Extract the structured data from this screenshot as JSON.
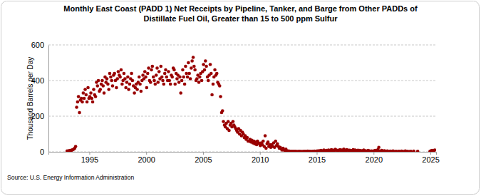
{
  "chart_data": {
    "type": "scatter",
    "title": [
      "Monthly East Coast (PADD 1) Net Receipts by Pipeline, Tanker, and Barge from Other PADDs of",
      "Distillate Fuel Oil, Greater than 15 to 500 ppm Sulfur"
    ],
    "y_label": "Thousand Barrels per Day",
    "source": "Source: U.S. Energy Information Administration",
    "color": "#990000",
    "marker": "circle",
    "grid": true,
    "xlim": [
      1991.4,
      2025.5
    ],
    "xticks": [
      1995,
      2000,
      2005,
      2010,
      2015,
      2020,
      2025
    ],
    "ylim": [
      0,
      600
    ],
    "yticks": [
      0,
      200,
      400,
      600
    ],
    "x": [
      1993.04,
      1993.13,
      1993.21,
      1993.29,
      1993.38,
      1993.46,
      1993.54,
      1993.63,
      1993.71,
      1993.79,
      1993.88,
      1993.96,
      1994.04,
      1994.13,
      1994.21,
      1994.29,
      1994.38,
      1994.46,
      1994.54,
      1994.63,
      1994.71,
      1994.79,
      1994.88,
      1994.96,
      1995.04,
      1995.13,
      1995.21,
      1995.29,
      1995.38,
      1995.46,
      1995.54,
      1995.63,
      1995.71,
      1995.79,
      1995.88,
      1995.96,
      1996.04,
      1996.13,
      1996.21,
      1996.29,
      1996.38,
      1996.46,
      1996.54,
      1996.63,
      1996.71,
      1996.79,
      1996.88,
      1996.96,
      1997.04,
      1997.13,
      1997.21,
      1997.29,
      1997.38,
      1997.46,
      1997.54,
      1997.63,
      1997.71,
      1997.79,
      1997.88,
      1997.96,
      1998.04,
      1998.13,
      1998.21,
      1998.29,
      1998.38,
      1998.46,
      1998.54,
      1998.63,
      1998.71,
      1998.79,
      1998.88,
      1998.96,
      1999.04,
      1999.13,
      1999.21,
      1999.29,
      1999.38,
      1999.46,
      1999.54,
      1999.63,
      1999.71,
      1999.79,
      1999.88,
      1999.96,
      2000.04,
      2000.13,
      2000.21,
      2000.29,
      2000.38,
      2000.46,
      2000.54,
      2000.63,
      2000.71,
      2000.79,
      2000.88,
      2000.96,
      2001.04,
      2001.13,
      2001.21,
      2001.29,
      2001.38,
      2001.46,
      2001.54,
      2001.63,
      2001.71,
      2001.79,
      2001.88,
      2001.96,
      2002.04,
      2002.13,
      2002.21,
      2002.29,
      2002.38,
      2002.46,
      2002.54,
      2002.63,
      2002.71,
      2002.79,
      2002.88,
      2002.96,
      2003.04,
      2003.13,
      2003.21,
      2003.29,
      2003.38,
      2003.46,
      2003.54,
      2003.63,
      2003.71,
      2003.79,
      2003.88,
      2003.96,
      2004.04,
      2004.13,
      2004.21,
      2004.29,
      2004.38,
      2004.46,
      2004.54,
      2004.63,
      2004.71,
      2004.79,
      2004.88,
      2004.96,
      2005.04,
      2005.13,
      2005.21,
      2005.29,
      2005.38,
      2005.46,
      2005.54,
      2005.63,
      2005.71,
      2005.79,
      2005.88,
      2005.96,
      2006.04,
      2006.13,
      2006.21,
      2006.29,
      2006.38,
      2006.46,
      2006.54,
      2006.63,
      2006.71,
      2006.79,
      2006.88,
      2006.96,
      2007.04,
      2007.13,
      2007.21,
      2007.29,
      2007.38,
      2007.46,
      2007.54,
      2007.63,
      2007.71,
      2007.79,
      2007.88,
      2007.96,
      2008.04,
      2008.13,
      2008.21,
      2008.29,
      2008.38,
      2008.46,
      2008.54,
      2008.63,
      2008.71,
      2008.79,
      2008.88,
      2008.96,
      2009.04,
      2009.13,
      2009.21,
      2009.29,
      2009.38,
      2009.46,
      2009.54,
      2009.63,
      2009.71,
      2009.79,
      2009.88,
      2009.96,
      2010.04,
      2010.13,
      2010.21,
      2010.29,
      2010.38,
      2010.46,
      2010.54,
      2010.63,
      2010.71,
      2010.79,
      2010.88,
      2010.96,
      2011.04,
      2011.13,
      2011.21,
      2011.29,
      2011.38,
      2011.46,
      2011.54,
      2011.63,
      2011.71,
      2011.79,
      2011.88,
      2011.96,
      2012.04,
      2012.13,
      2012.21,
      2012.29,
      2012.38,
      2012.46,
      2012.54,
      2012.63,
      2012.71,
      2012.79,
      2012.88,
      2012.96,
      2013.04,
      2013.13,
      2013.21,
      2013.29,
      2013.38,
      2013.46,
      2013.54,
      2013.63,
      2013.71,
      2013.79,
      2013.88,
      2013.96,
      2014.04,
      2014.13,
      2014.21,
      2014.29,
      2014.38,
      2014.46,
      2014.54,
      2014.63,
      2014.71,
      2014.79,
      2014.88,
      2014.96,
      2015.04,
      2015.13,
      2015.21,
      2015.29,
      2015.38,
      2015.46,
      2015.54,
      2015.63,
      2015.71,
      2015.79,
      2015.88,
      2015.96,
      2016.04,
      2016.13,
      2016.21,
      2016.29,
      2016.38,
      2016.46,
      2016.54,
      2016.63,
      2016.71,
      2016.79,
      2016.88,
      2016.96,
      2017.04,
      2017.13,
      2017.21,
      2017.29,
      2017.38,
      2017.46,
      2017.54,
      2017.63,
      2017.71,
      2017.79,
      2017.88,
      2017.96,
      2018.04,
      2018.13,
      2018.21,
      2018.29,
      2018.38,
      2018.46,
      2018.54,
      2018.63,
      2018.71,
      2018.79,
      2018.88,
      2018.96,
      2019.04,
      2019.13,
      2019.21,
      2019.29,
      2019.38,
      2019.46,
      2019.54,
      2019.63,
      2019.71,
      2019.79,
      2019.88,
      2019.96,
      2020.04,
      2020.13,
      2020.21,
      2020.29,
      2020.38,
      2020.46,
      2020.54,
      2020.63,
      2020.71,
      2020.79,
      2020.88,
      2020.96,
      2021.04,
      2021.13,
      2021.21,
      2021.29,
      2021.38,
      2021.46,
      2021.54,
      2021.63,
      2021.71,
      2021.79,
      2021.88,
      2021.96,
      2022.04,
      2022.13,
      2022.21,
      2022.29,
      2022.38,
      2022.46,
      2022.54,
      2022.63,
      2022.71,
      2022.79,
      2022.88,
      2022.96,
      2023.04,
      2023.13,
      2023.21,
      2023.29,
      2023.38,
      2023.46,
      2023.54,
      2023.63,
      2023.71,
      2023.79,
      2023.88,
      2023.96,
      2024.04,
      2024.13,
      2024.21,
      2024.29,
      2024.38,
      2024.46,
      2024.54,
      2024.63,
      2024.71,
      2024.79,
      2024.88,
      2024.96,
      2025.04,
      2025.13,
      2025.21,
      2025.29,
      2025.38
    ],
    "values": [
      5,
      3,
      6,
      8,
      5,
      10,
      12,
      15,
      20,
      30,
      250,
      280,
      310,
      220,
      290,
      300,
      280,
      330,
      300,
      350,
      320,
      280,
      360,
      300,
      310,
      330,
      300,
      280,
      350,
      320,
      310,
      390,
      370,
      400,
      340,
      350,
      380,
      400,
      370,
      330,
      420,
      390,
      410,
      380,
      350,
      440,
      420,
      400,
      370,
      430,
      440,
      400,
      360,
      410,
      450,
      430,
      420,
      460,
      380,
      400,
      440,
      410,
      360,
      390,
      420,
      350,
      380,
      410,
      440,
      400,
      370,
      330,
      360,
      380,
      350,
      390,
      420,
      380,
      340,
      400,
      430,
      410,
      450,
      420,
      360,
      440,
      470,
      400,
      390,
      460,
      480,
      420,
      400,
      380,
      430,
      470,
      390,
      450,
      410,
      480,
      420,
      400,
      380,
      440,
      460,
      420,
      400,
      450,
      400,
      380,
      430,
      420,
      470,
      460,
      380,
      440,
      410,
      430,
      390,
      420,
      330,
      400,
      460,
      420,
      380,
      480,
      440,
      420,
      500,
      440,
      410,
      470,
      510,
      530,
      480,
      460,
      400,
      410,
      430,
      390,
      420,
      440,
      400,
      450,
      490,
      460,
      510,
      480,
      420,
      400,
      430,
      490,
      440,
      320,
      380,
      420,
      460,
      430,
      440,
      390,
      380,
      370,
      310,
      220,
      230,
      170,
      150,
      140,
      160,
      130,
      170,
      120,
      150,
      160,
      140,
      170,
      150,
      140,
      130,
      120,
      110,
      130,
      100,
      120,
      90,
      110,
      100,
      80,
      90,
      70,
      80,
      60,
      60,
      70,
      55,
      65,
      50,
      60,
      45,
      55,
      40,
      60,
      50,
      45,
      35,
      50,
      40,
      60,
      30,
      90,
      20,
      45,
      55,
      30,
      40,
      25,
      40,
      30,
      50,
      25,
      60,
      35,
      45,
      30,
      20,
      25,
      15,
      10,
      20,
      10,
      8,
      15,
      5,
      3,
      5,
      3,
      2,
      3,
      2,
      3,
      2,
      3,
      1,
      2,
      1,
      3,
      2,
      1,
      2,
      1,
      3,
      2,
      3,
      2,
      4,
      2,
      3,
      2,
      1,
      3,
      2,
      4,
      3,
      2,
      5,
      3,
      6,
      4,
      8,
      5,
      3,
      10,
      6,
      4,
      8,
      5,
      10,
      6,
      8,
      12,
      5,
      9,
      7,
      14,
      10,
      8,
      6,
      9,
      12,
      8,
      10,
      5,
      15,
      8,
      6,
      12,
      10,
      7,
      9,
      8,
      5,
      8,
      12,
      6,
      10,
      4,
      7,
      9,
      5,
      8,
      3,
      6,
      4,
      10,
      3,
      6,
      2,
      5,
      8,
      3,
      2,
      5,
      4,
      3,
      5,
      8,
      2,
      6,
      12,
      25,
      4,
      3,
      8,
      5,
      2,
      6,
      3,
      2,
      5,
      null,
      2,
      4,
      null,
      3,
      5,
      2,
      null,
      3,
      2,
      null,
      3,
      2,
      null,
      4,
      3,
      null,
      2,
      5,
      null,
      3,
      null,
      2,
      null,
      3,
      null,
      null,
      4,
      null,
      null,
      null,
      3,
      null,
      null,
      null,
      null,
      null,
      null,
      null,
      null,
      null,
      null,
      null,
      null,
      3,
      5,
      8,
      4,
      6,
      10
    ]
  }
}
